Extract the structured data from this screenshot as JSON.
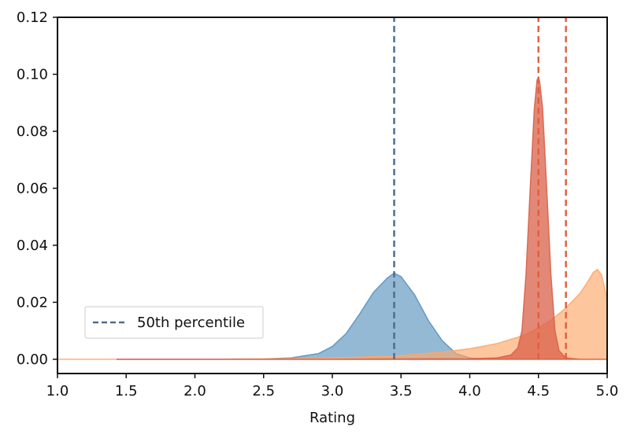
{
  "chart_data": {
    "type": "area",
    "title": "",
    "xlabel": "Rating",
    "ylabel": "",
    "xlim": [
      1.0,
      5.0
    ],
    "ylim": [
      -0.005,
      0.12
    ],
    "x_ticks": [
      "1.0",
      "1.5",
      "2.0",
      "2.5",
      "3.0",
      "3.5",
      "4.0",
      "4.5",
      "5.0"
    ],
    "y_ticks": [
      "0.00",
      "0.02",
      "0.04",
      "0.06",
      "0.08",
      "0.10",
      "0.12"
    ],
    "grid": false,
    "legend": {
      "position": "lower-left",
      "entries": [
        "50th percentile"
      ]
    },
    "series": [
      {
        "color": "#5b93bf",
        "percentile_50": 3.45,
        "x": [
          1.43,
          2.0,
          2.5,
          2.7,
          2.9,
          3.0,
          3.1,
          3.2,
          3.3,
          3.4,
          3.45,
          3.5,
          3.6,
          3.7,
          3.8,
          3.9,
          4.0,
          4.1
        ],
        "values": [
          0.0,
          0.0,
          0.0001,
          0.0005,
          0.002,
          0.0045,
          0.009,
          0.016,
          0.0235,
          0.0285,
          0.0302,
          0.029,
          0.0225,
          0.0135,
          0.0065,
          0.002,
          0.0005,
          0.0
        ]
      },
      {
        "color": "#fda768",
        "percentile_50": 4.7,
        "x": [
          1.0,
          2.0,
          2.5,
          3.0,
          3.5,
          3.8,
          4.0,
          4.2,
          4.4,
          4.5,
          4.6,
          4.7,
          4.8,
          4.85,
          4.9,
          4.93,
          4.96,
          5.0
        ],
        "values": [
          0.0,
          0.0,
          0.0001,
          0.0004,
          0.0013,
          0.0025,
          0.0037,
          0.0055,
          0.0085,
          0.011,
          0.014,
          0.018,
          0.023,
          0.0265,
          0.0305,
          0.0315,
          0.0295,
          0.021
        ]
      },
      {
        "color": "#d9604a",
        "percentile_50": 4.5,
        "x": [
          1.43,
          3.0,
          4.0,
          4.2,
          4.3,
          4.35,
          4.38,
          4.41,
          4.44,
          4.47,
          4.49,
          4.5,
          4.51,
          4.53,
          4.56,
          4.59,
          4.62,
          4.65,
          4.7,
          4.8,
          5.0
        ],
        "values": [
          0.0,
          0.0,
          0.0002,
          0.0005,
          0.0015,
          0.004,
          0.01,
          0.03,
          0.06,
          0.088,
          0.098,
          0.099,
          0.097,
          0.088,
          0.06,
          0.03,
          0.01,
          0.003,
          0.0005,
          0.0,
          0.0
        ]
      }
    ]
  }
}
